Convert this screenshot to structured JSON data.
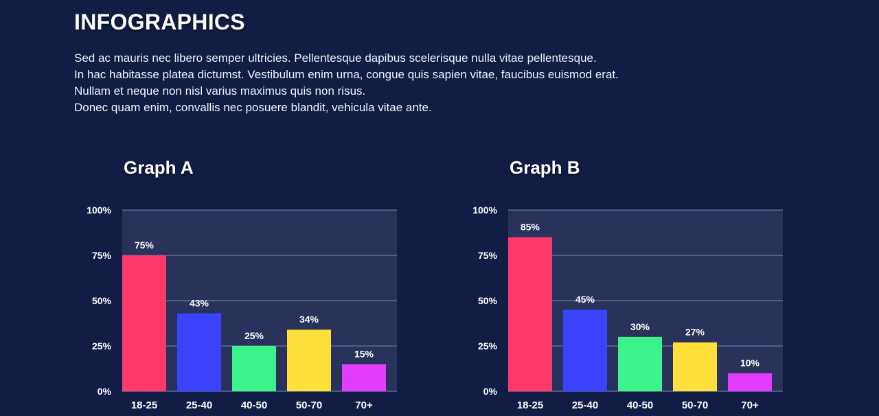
{
  "page": {
    "title": "INFOGRAPHICS",
    "intro_lines": [
      "Sed ac mauris nec libero semper ultricies. Pellentesque dapibus scelerisque nulla vitae pellentesque.",
      "In hac habitasse platea dictumst. Vestibulum enim urna, congue quis sapien vitae, faucibus euismod erat.",
      "Nullam et neque non nisl varius maximus quis non risus.",
      "Donec quam enim, convallis nec posuere blandit, vehicula vitae ante."
    ]
  },
  "colors": {
    "background": "#121d45",
    "plot_background": "#28325a",
    "gridline": "#5a6a9a",
    "bars": [
      "#ff3a6a",
      "#3a44ff",
      "#3cf38a",
      "#ffdf3a",
      "#e23cff"
    ]
  },
  "chart_data": [
    {
      "type": "bar",
      "title": "Graph A",
      "categories": [
        "18-25",
        "25-40",
        "40-50",
        "50-70",
        "70+"
      ],
      "values": [
        75,
        43,
        25,
        34,
        15
      ],
      "value_labels": [
        "75%",
        "43%",
        "25%",
        "34%",
        "15%"
      ],
      "ylim": [
        0,
        100
      ],
      "yticks": [
        "0%",
        "25%",
        "50%",
        "75%",
        "100%"
      ],
      "xlabel": "",
      "ylabel": "",
      "grid": true
    },
    {
      "type": "bar",
      "title": "Graph B",
      "categories": [
        "18-25",
        "25-40",
        "40-50",
        "50-70",
        "70+"
      ],
      "values": [
        85,
        45,
        30,
        27,
        10
      ],
      "value_labels": [
        "85%",
        "45%",
        "30%",
        "27%",
        "10%"
      ],
      "ylim": [
        0,
        100
      ],
      "yticks": [
        "0%",
        "25%",
        "50%",
        "75%",
        "100%"
      ],
      "xlabel": "",
      "ylabel": "",
      "grid": true
    }
  ]
}
